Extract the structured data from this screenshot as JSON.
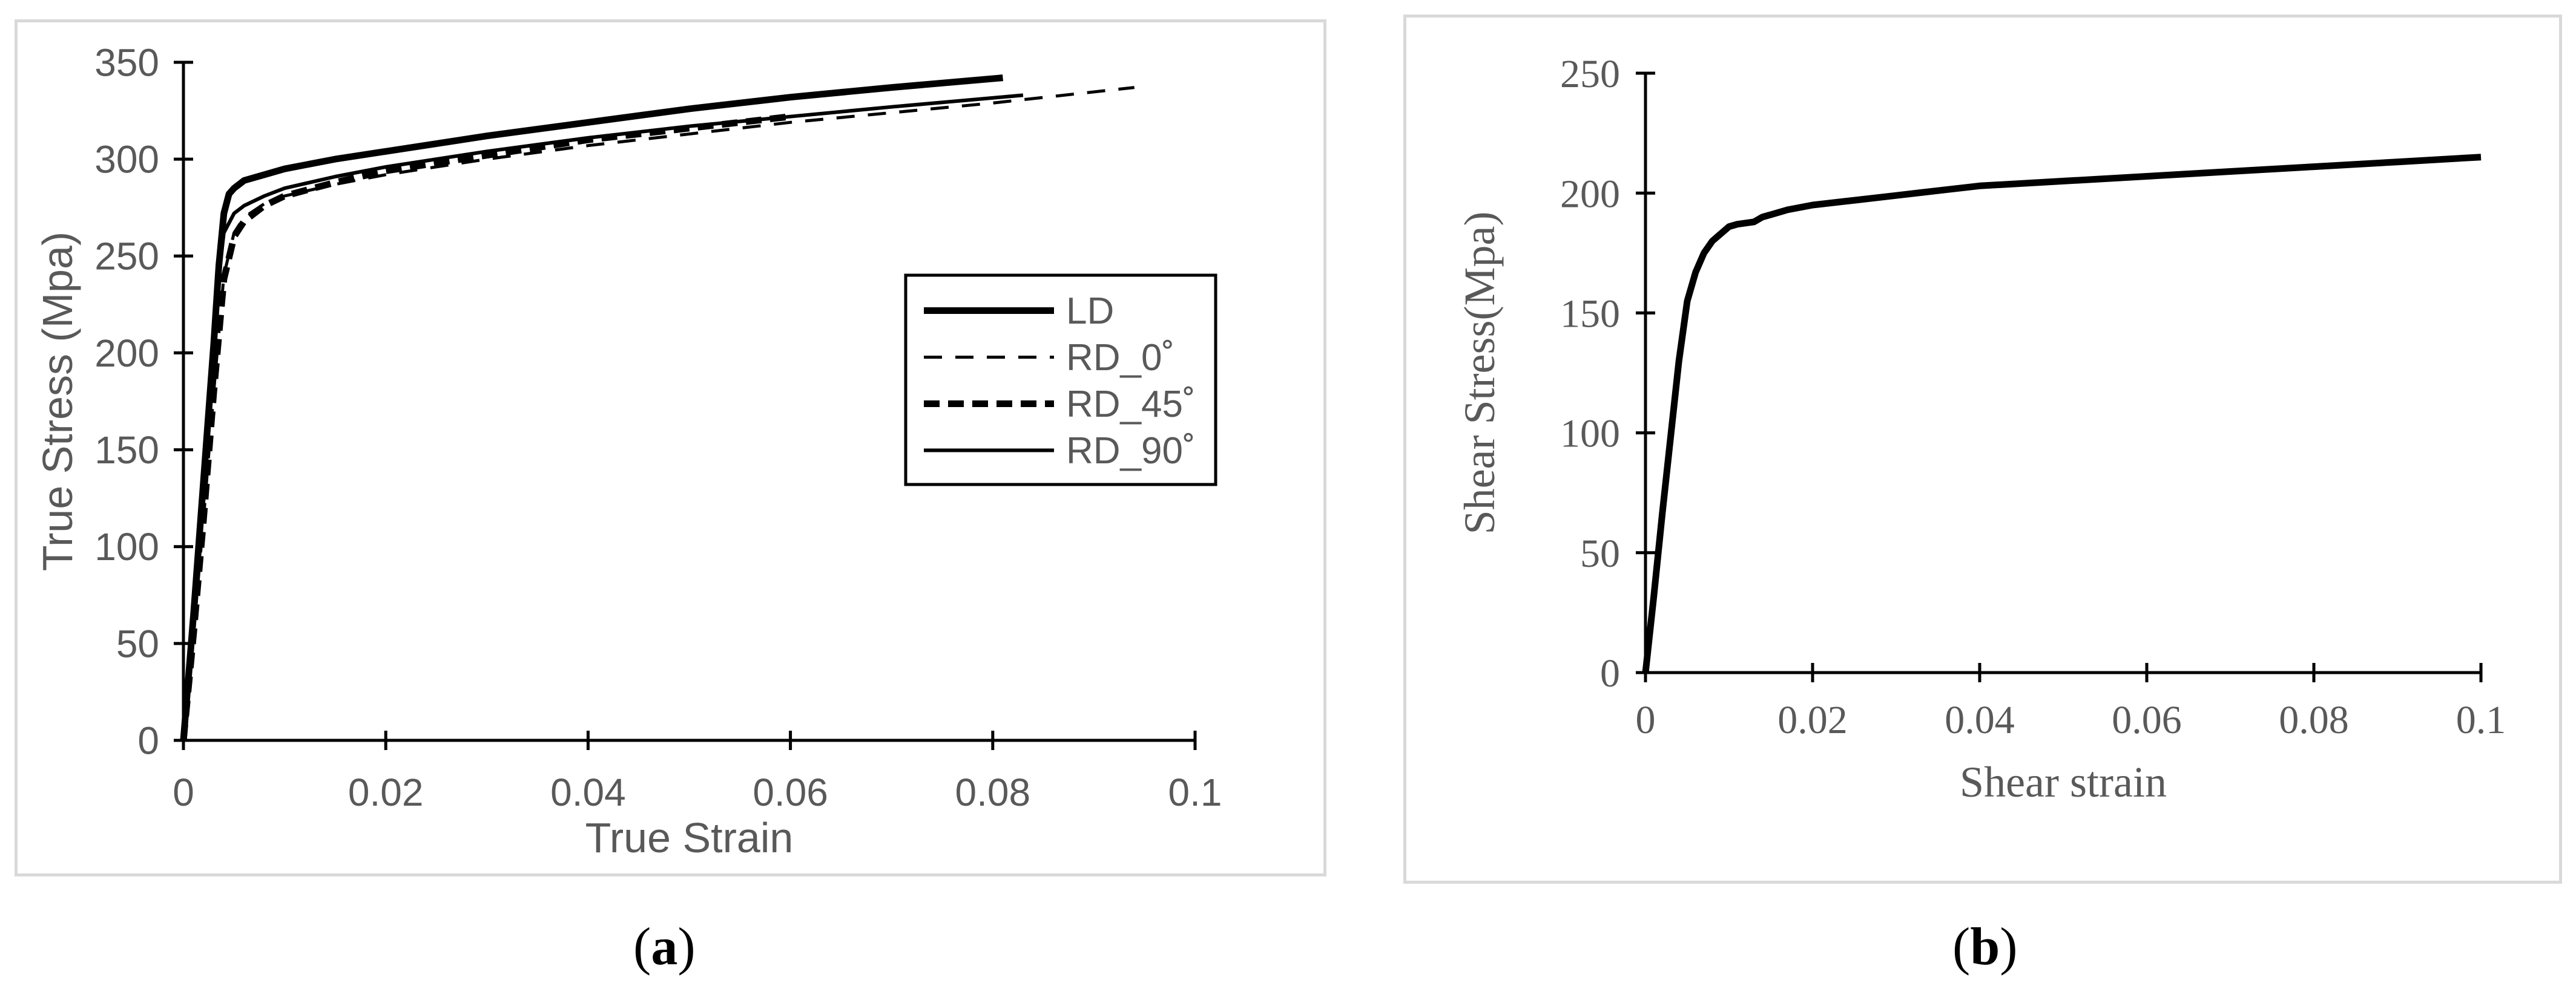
{
  "captions": {
    "a": "a",
    "b": "b"
  },
  "chart_data": [
    {
      "type": "line",
      "panel": "a",
      "xlabel": "True Strain",
      "ylabel": "True Stress (Mpa)",
      "xlim": [
        0,
        0.1
      ],
      "ylim": [
        0,
        350
      ],
      "xticks": [
        0,
        0.02,
        0.04,
        0.06,
        0.08,
        0.1
      ],
      "xtick_labels": [
        "0",
        "0.02",
        "0.04",
        "0.06",
        "0.08",
        "0.1"
      ],
      "yticks": [
        0,
        50,
        100,
        150,
        200,
        250,
        300,
        350
      ],
      "ytick_labels": [
        "0",
        "50",
        "100",
        "150",
        "200",
        "250",
        "300",
        "350"
      ],
      "grid": false,
      "legend_position": "right",
      "series": [
        {
          "name": "LD",
          "style": "solid-thick",
          "x": [
            0,
            0.001,
            0.002,
            0.003,
            0.0035,
            0.004,
            0.0045,
            0.005,
            0.006,
            0.008,
            0.01,
            0.015,
            0.02,
            0.03,
            0.04,
            0.05,
            0.06,
            0.07,
            0.081
          ],
          "y": [
            0,
            65,
            135,
            205,
            245,
            272,
            282,
            285,
            289,
            292,
            295,
            300,
            304,
            312,
            319,
            326,
            332,
            337,
            342
          ]
        },
        {
          "name": "RD_0˚",
          "style": "dashed",
          "x": [
            0,
            0.001,
            0.002,
            0.003,
            0.004,
            0.005,
            0.006,
            0.008,
            0.01,
            0.015,
            0.02,
            0.03,
            0.04,
            0.05,
            0.06,
            0.07,
            0.08,
            0.094
          ],
          "y": [
            0,
            55,
            115,
            180,
            240,
            262,
            270,
            277,
            281,
            287,
            292,
            300,
            307,
            313,
            319,
            324,
            329,
            337
          ]
        },
        {
          "name": "RD_45˚",
          "style": "dashed-thick",
          "x": [
            0,
            0.001,
            0.002,
            0.003,
            0.004,
            0.005,
            0.006,
            0.008,
            0.01,
            0.015,
            0.02,
            0.03,
            0.04,
            0.05,
            0.06
          ],
          "y": [
            0,
            55,
            115,
            180,
            238,
            260,
            268,
            276,
            281,
            288,
            294,
            302,
            310,
            316,
            322
          ]
        },
        {
          "name": "RD_90˚",
          "style": "solid",
          "x": [
            0,
            0.001,
            0.002,
            0.003,
            0.0035,
            0.004,
            0.005,
            0.006,
            0.008,
            0.01,
            0.015,
            0.02,
            0.03,
            0.04,
            0.05,
            0.06,
            0.07,
            0.083
          ],
          "y": [
            0,
            60,
            125,
            195,
            240,
            262,
            272,
            276,
            281,
            285,
            291,
            296,
            304,
            311,
            317,
            322,
            327,
            333
          ]
        }
      ]
    },
    {
      "type": "line",
      "panel": "b",
      "xlabel": "Shear strain",
      "ylabel": "Shear Stress(Mpa)",
      "xlim": [
        0,
        0.1
      ],
      "ylim": [
        0,
        250
      ],
      "xticks": [
        0,
        0.02,
        0.04,
        0.06,
        0.08,
        0.1
      ],
      "xtick_labels": [
        "0",
        "0.02",
        "0.04",
        "0.06",
        "0.08",
        "0.1"
      ],
      "yticks": [
        0,
        50,
        100,
        150,
        200,
        250
      ],
      "ytick_labels": [
        "0",
        "50",
        "100",
        "150",
        "200",
        "250"
      ],
      "grid": false,
      "series": [
        {
          "style": "solid-thick",
          "x": [
            0,
            0.001,
            0.002,
            0.003,
            0.004,
            0.005,
            0.006,
            0.007,
            0.008,
            0.009,
            0.01,
            0.011,
            0.013,
            0.014,
            0.015,
            0.017,
            0.02,
            0.025,
            0.03,
            0.035,
            0.04,
            0.05,
            0.06,
            0.07,
            0.08,
            0.09,
            0.1
          ],
          "y": [
            0,
            32,
            66,
            98,
            130,
            155,
            167,
            175,
            180,
            183,
            186,
            187,
            188,
            190,
            191,
            193,
            195,
            197,
            199,
            201,
            203,
            205,
            207,
            209,
            211,
            213,
            215
          ]
        }
      ]
    }
  ]
}
